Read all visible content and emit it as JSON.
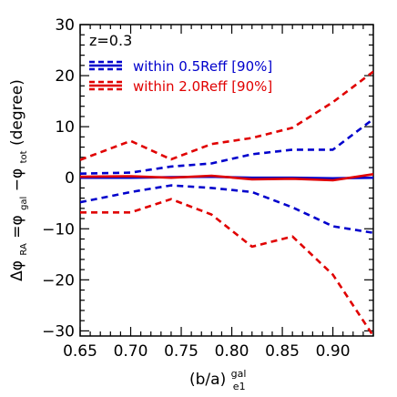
{
  "chart_data": {
    "type": "line",
    "annotation": "z=0.3",
    "xlabel": {
      "main": "(b/a)",
      "sup": "gal",
      "sub": "e1"
    },
    "ylabel": {
      "delta_phi": "Δφ",
      "sub_ra": "RA",
      "eq": "=φ",
      "sub_gal": "gal",
      "minus": "−φ",
      "sub_tot": "tot",
      "unit": " (degree)"
    },
    "xlim": [
      0.65,
      0.94
    ],
    "ylim": [
      -31,
      30
    ],
    "xticks": [
      0.65,
      0.7,
      0.75,
      0.8,
      0.85,
      0.9
    ],
    "xtick_labels": [
      "0.65",
      "0.70",
      "0.75",
      "0.80",
      "0.85",
      "0.90"
    ],
    "yticks": [
      -30,
      -20,
      -10,
      0,
      10,
      20,
      30
    ],
    "ytick_labels": [
      "−30",
      "−20",
      "−10",
      "0",
      "10",
      "20",
      "30"
    ],
    "x": [
      0.65,
      0.7,
      0.74,
      0.78,
      0.82,
      0.86,
      0.9,
      0.94
    ],
    "series": [
      {
        "name": "within 0.5Reff [90%]",
        "color": "#0000cc",
        "style": "dashed",
        "role": "upper",
        "values": [
          0.8,
          1.0,
          2.2,
          2.8,
          4.6,
          5.5,
          5.5,
          11.5
        ]
      },
      {
        "name": "within 0.5Reff [90%]",
        "color": "#0000cc",
        "style": "dashed",
        "role": "lower",
        "values": [
          -4.8,
          -2.8,
          -1.5,
          -2.0,
          -2.8,
          -5.8,
          -9.5,
          -10.8
        ]
      },
      {
        "name": "within 0.5Reff [90%]",
        "color": "#0000cc",
        "style": "solid",
        "role": "median",
        "values": [
          0.0,
          0.0,
          0.1,
          0.2,
          0.0,
          0.0,
          -0.1,
          0.0
        ]
      },
      {
        "name": "within 2.0Reff [90%]",
        "color": "#e00000",
        "style": "dashed",
        "role": "upper",
        "values": [
          3.5,
          7.2,
          3.6,
          6.6,
          7.8,
          9.8,
          14.8,
          20.8
        ]
      },
      {
        "name": "within 2.0Reff [90%]",
        "color": "#e00000",
        "style": "dashed",
        "role": "lower",
        "values": [
          -6.8,
          -6.8,
          -4.2,
          -7.2,
          -13.5,
          -11.5,
          -19.0,
          -31.0
        ]
      },
      {
        "name": "within 2.0Reff [90%]",
        "color": "#e00000",
        "style": "solid",
        "role": "median",
        "values": [
          0.2,
          0.3,
          0.0,
          0.4,
          -0.3,
          -0.2,
          -0.5,
          0.7
        ]
      }
    ],
    "legend": [
      {
        "label": "within 0.5Reff [90%]",
        "color": "#0000cc"
      },
      {
        "label": "within 2.0Reff [90%]",
        "color": "#e00000"
      }
    ],
    "legend_position": "top-left",
    "grid": false
  }
}
